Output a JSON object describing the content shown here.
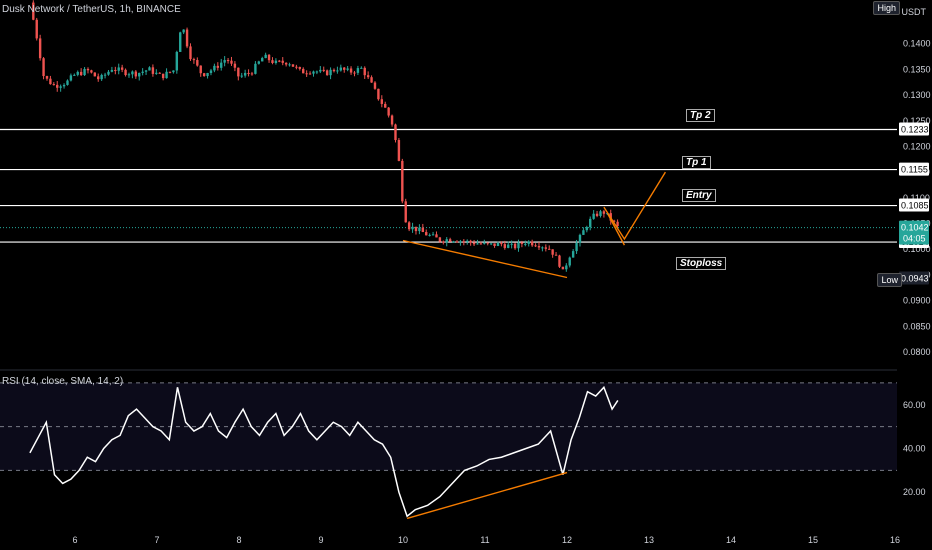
{
  "header": {
    "symbol_title": "Dusk Network / TetherUS, 1h, BINANCE",
    "currency": "USDT",
    "high_tag": "High",
    "low_tag": "Low"
  },
  "annotations": {
    "tp2": "Tp 2",
    "tp1": "Tp 1",
    "entry": "Entry",
    "stoploss": "Stoploss"
  },
  "colors": {
    "up": "#26a69a",
    "down": "#ef5350",
    "line": "#ffffff",
    "trend": "#f57c00",
    "current": "#26a69a"
  },
  "chart_data": [
    {
      "type": "candlestick",
      "title": "Dusk Network / TetherUS, 1h, BINANCE",
      "ylabel": "USDT",
      "ylim": [
        0.0765,
        0.1485
      ],
      "yticks": [
        "0.1400",
        "0.1350",
        "0.1300",
        "0.1250",
        "0.1200",
        "0.1150",
        "0.1100",
        "0.1050",
        "0.1000",
        "0.0950",
        "0.0900",
        "0.0850",
        "0.0800"
      ],
      "xticks": [
        "6",
        "7",
        "8",
        "9",
        "10",
        "11",
        "12",
        "13",
        "14",
        "15",
        "16"
      ],
      "levels": [
        {
          "label": "Tp 2",
          "price": "0.1233",
          "value": 0.1233
        },
        {
          "label": "Tp 1",
          "price": "0.1155",
          "value": 0.1155
        },
        {
          "label": "Entry",
          "price": "0.1085",
          "value": 0.1085
        },
        {
          "label": "Stoploss",
          "price": "0.1014",
          "value": 0.1014
        }
      ],
      "current_price": {
        "price": "0.1042",
        "countdown": "04:05",
        "value": 0.1042
      },
      "low_price": {
        "price": "0.0943",
        "value": 0.0943
      },
      "price_path": [
        [
          5.45,
          0.148
        ],
        [
          5.55,
          0.14
        ],
        [
          5.62,
          0.1335
        ],
        [
          5.75,
          0.1318
        ],
        [
          5.9,
          0.1325
        ],
        [
          6.0,
          0.134
        ],
        [
          6.15,
          0.1348
        ],
        [
          6.3,
          0.133
        ],
        [
          6.45,
          0.1352
        ],
        [
          6.6,
          0.1345
        ],
        [
          6.75,
          0.1342
        ],
        [
          6.9,
          0.135
        ],
        [
          7.05,
          0.1336
        ],
        [
          7.2,
          0.1348
        ],
        [
          7.3,
          0.1442
        ],
        [
          7.4,
          0.1378
        ],
        [
          7.55,
          0.134
        ],
        [
          7.7,
          0.1352
        ],
        [
          7.85,
          0.1372
        ],
        [
          8.0,
          0.1335
        ],
        [
          8.15,
          0.1345
        ],
        [
          8.3,
          0.1375
        ],
        [
          8.45,
          0.1362
        ],
        [
          8.6,
          0.1365
        ],
        [
          8.75,
          0.1345
        ],
        [
          8.9,
          0.1348
        ],
        [
          9.05,
          0.1342
        ],
        [
          9.2,
          0.1352
        ],
        [
          9.35,
          0.1345
        ],
        [
          9.5,
          0.1352
        ],
        [
          9.6,
          0.1325
        ],
        [
          9.7,
          0.1295
        ],
        [
          9.8,
          0.127
        ],
        [
          9.88,
          0.124
        ],
        [
          9.95,
          0.117
        ],
        [
          10.0,
          0.1085
        ],
        [
          10.05,
          0.1045
        ],
        [
          10.15,
          0.104
        ],
        [
          10.3,
          0.1028
        ],
        [
          10.45,
          0.1018
        ],
        [
          10.6,
          0.102
        ],
        [
          10.75,
          0.1015
        ],
        [
          10.9,
          0.1012
        ],
        [
          11.05,
          0.1008
        ],
        [
          11.2,
          0.101
        ],
        [
          11.35,
          0.1004
        ],
        [
          11.5,
          0.1015
        ],
        [
          11.65,
          0.101
        ],
        [
          11.8,
          0.1
        ],
        [
          11.9,
          0.0975
        ],
        [
          11.95,
          0.0955
        ],
        [
          12.05,
          0.0995
        ],
        [
          12.15,
          0.102
        ],
        [
          12.25,
          0.105
        ],
        [
          12.35,
          0.1068
        ],
        [
          12.45,
          0.1072
        ],
        [
          12.55,
          0.1055
        ],
        [
          12.62,
          0.1042
        ]
      ],
      "projection": [
        [
          12.45,
          0.1082
        ],
        [
          12.7,
          0.102
        ],
        [
          13.2,
          0.115
        ]
      ],
      "pullback": [
        [
          12.5,
          0.1068
        ],
        [
          12.7,
          0.1008
        ]
      ],
      "trendline": [
        [
          10.0,
          0.1017
        ],
        [
          12.0,
          0.0945
        ]
      ]
    },
    {
      "type": "line",
      "title": "RSI (14, close, SMA, 14, 2)",
      "ylim": [
        5,
        75
      ],
      "yticks": [
        "60.00",
        "40.00",
        "20.00"
      ],
      "bands": [
        70,
        50,
        30
      ],
      "series": [
        {
          "x": [
            5.45,
            5.55,
            5.65,
            5.75,
            5.85,
            5.95,
            6.05,
            6.15,
            6.25,
            6.35,
            6.45,
            6.55,
            6.65,
            6.75,
            6.85,
            6.95,
            7.05,
            7.15,
            7.25,
            7.35,
            7.45,
            7.55,
            7.65,
            7.75,
            7.85,
            7.95,
            8.05,
            8.15,
            8.25,
            8.35,
            8.45,
            8.55,
            8.65,
            8.75,
            8.85,
            8.95,
            9.05,
            9.15,
            9.25,
            9.35,
            9.45,
            9.55,
            9.65,
            9.75,
            9.85,
            9.95,
            10.05,
            10.15,
            10.3,
            10.45,
            10.6,
            10.75,
            10.9,
            11.05,
            11.2,
            11.35,
            11.5,
            11.65,
            11.8,
            11.95,
            12.05,
            12.15,
            12.25,
            12.35,
            12.45,
            12.55,
            12.62
          ],
          "values": [
            38,
            45,
            52,
            28,
            24,
            26,
            30,
            36,
            34,
            40,
            44,
            46,
            55,
            58,
            54,
            50,
            48,
            44,
            68,
            52,
            48,
            50,
            56,
            48,
            45,
            52,
            58,
            50,
            46,
            52,
            56,
            46,
            50,
            56,
            48,
            44,
            48,
            52,
            50,
            46,
            52,
            48,
            44,
            42,
            36,
            20,
            9,
            12,
            14,
            18,
            24,
            30,
            32,
            35,
            36,
            38,
            40,
            42,
            48,
            28,
            44,
            54,
            66,
            64,
            68,
            58,
            62
          ]
        }
      ],
      "trendline": [
        [
          10.05,
          8
        ],
        [
          12.0,
          29
        ]
      ]
    }
  ]
}
